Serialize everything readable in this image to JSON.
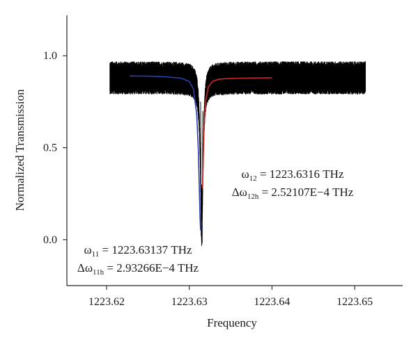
{
  "chart_data": {
    "type": "line",
    "xlabel": "Frequency",
    "ylabel": "Normalized Transmission",
    "xlim": [
      1223.6152,
      1223.6558
    ],
    "ylim": [
      -0.25,
      1.22
    ],
    "x_ticks": [
      1223.62,
      1223.63,
      1223.64,
      1223.65
    ],
    "x_tick_labels": [
      "1223.62",
      "1223.63",
      "1223.64",
      "1223.65"
    ],
    "y_ticks": [
      0.0,
      0.5,
      1.0
    ],
    "y_tick_labels": [
      "0.0",
      "0.5",
      "1.0"
    ],
    "grid": false,
    "legend": "none",
    "series": [
      {
        "color": "#000000",
        "style": "noisy measured transmission",
        "x_range": [
          1223.6204,
          1223.6513
        ],
        "baseline": 0.88,
        "noise_band": [
          0.79,
          0.97
        ],
        "dip_center": 1223.6315,
        "dip_min": 0.0
      },
      {
        "color": "#2a3fb0",
        "style": "Lorentzian fit (left resonance)",
        "x": [
          1223.6228,
          1223.625,
          1223.627,
          1223.629,
          1223.63,
          1223.6305,
          1223.6309,
          1223.6311,
          1223.6312,
          1223.6313,
          1223.63137
        ],
        "y": [
          0.89,
          0.889,
          0.886,
          0.878,
          0.86,
          0.82,
          0.68,
          0.48,
          0.3,
          0.12,
          0.05
        ]
      },
      {
        "color": "#cc2a20",
        "style": "Lorentzian fit (right resonance)",
        "x": [
          1223.6316,
          1223.6317,
          1223.6318,
          1223.632,
          1223.6323,
          1223.6328,
          1223.6335,
          1223.635,
          1223.6375,
          1223.64
        ],
        "y": [
          0.28,
          0.45,
          0.62,
          0.76,
          0.83,
          0.86,
          0.872,
          0.877,
          0.879,
          0.88
        ]
      }
    ],
    "annotations": [
      {
        "anchor": "right",
        "line1": {
          "symbol": "ω",
          "sub": "12",
          "text": " = 1223.6316 THz"
        },
        "line2": {
          "symbol": "Δω",
          "sub": "12h",
          "text": " = 2.52107E−4 THz"
        }
      },
      {
        "anchor": "left",
        "line1": {
          "symbol": "ω",
          "sub": "11",
          "text": " = 1223.63137 THz"
        },
        "line2": {
          "symbol": "Δω",
          "sub": "11h",
          "text": " = 2.93266E−4 THz"
        }
      }
    ]
  }
}
